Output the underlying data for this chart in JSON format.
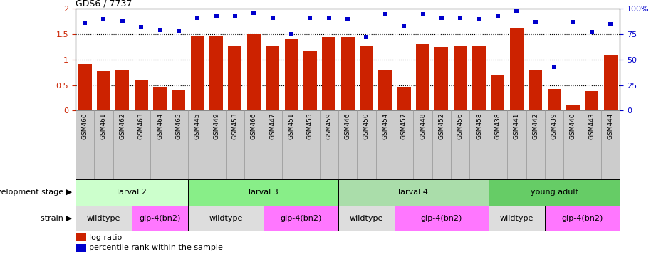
{
  "title": "GDS6 / 7737",
  "categories": [
    "GSM460",
    "GSM461",
    "GSM462",
    "GSM463",
    "GSM464",
    "GSM465",
    "GSM445",
    "GSM449",
    "GSM453",
    "GSM466",
    "GSM447",
    "GSM451",
    "GSM455",
    "GSM459",
    "GSM446",
    "GSM450",
    "GSM454",
    "GSM457",
    "GSM448",
    "GSM452",
    "GSM456",
    "GSM458",
    "GSM438",
    "GSM441",
    "GSM442",
    "GSM439",
    "GSM440",
    "GSM443",
    "GSM444"
  ],
  "log_ratio": [
    0.92,
    0.77,
    0.79,
    0.6,
    0.47,
    0.4,
    1.47,
    1.47,
    1.27,
    1.5,
    1.27,
    1.4,
    1.17,
    1.45,
    1.45,
    1.28,
    0.8,
    0.47,
    1.3,
    1.25,
    1.27,
    1.27,
    0.7,
    1.63,
    0.8,
    0.43,
    0.11,
    0.38,
    1.08
  ],
  "percentile": [
    86,
    90,
    88,
    82,
    79,
    78,
    91,
    93,
    93,
    96,
    91,
    75,
    91,
    91,
    90,
    72,
    95,
    83,
    95,
    91,
    91,
    90,
    93,
    98,
    87,
    43,
    87,
    77,
    85
  ],
  "bar_color": "#cc2200",
  "dot_color": "#0000cc",
  "background_color": "#ffffff",
  "ylim_left": [
    0,
    2
  ],
  "ylim_right": [
    0,
    100
  ],
  "yticks_left": [
    0,
    0.5,
    1.0,
    1.5,
    2.0
  ],
  "yticks_right": [
    0,
    25,
    50,
    75,
    100
  ],
  "ytick_labels_left": [
    "0",
    "0.5",
    "1",
    "1.5",
    "2"
  ],
  "ytick_labels_right": [
    "0",
    "25",
    "50",
    "75",
    "100%"
  ],
  "hlines": [
    0.5,
    1.0,
    1.5
  ],
  "dev_stages": [
    {
      "label": "larval 2",
      "start": 0,
      "end": 6,
      "color": "#ccffcc"
    },
    {
      "label": "larval 3",
      "start": 6,
      "end": 14,
      "color": "#88ee88"
    },
    {
      "label": "larval 4",
      "start": 14,
      "end": 22,
      "color": "#aaddaa"
    },
    {
      "label": "young adult",
      "start": 22,
      "end": 29,
      "color": "#66cc66"
    }
  ],
  "strains": [
    {
      "label": "wildtype",
      "start": 0,
      "end": 3,
      "color": "#dddddd"
    },
    {
      "label": "glp-4(bn2)",
      "start": 3,
      "end": 6,
      "color": "#ff77ff"
    },
    {
      "label": "wildtype",
      "start": 6,
      "end": 10,
      "color": "#dddddd"
    },
    {
      "label": "glp-4(bn2)",
      "start": 10,
      "end": 14,
      "color": "#ff77ff"
    },
    {
      "label": "wildtype",
      "start": 14,
      "end": 17,
      "color": "#dddddd"
    },
    {
      "label": "glp-4(bn2)",
      "start": 17,
      "end": 22,
      "color": "#ff77ff"
    },
    {
      "label": "wildtype",
      "start": 22,
      "end": 25,
      "color": "#dddddd"
    },
    {
      "label": "glp-4(bn2)",
      "start": 25,
      "end": 29,
      "color": "#ff77ff"
    }
  ],
  "legend_log_label": "log ratio",
  "legend_pct_label": "percentile rank within the sample",
  "xlabel_dev": "development stage",
  "xlabel_strain": "strain",
  "gray_box_color": "#cccccc",
  "gray_box_edge": "#999999"
}
